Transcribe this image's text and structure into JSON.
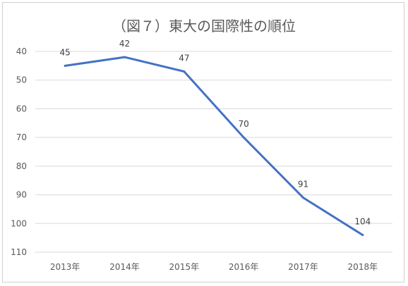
{
  "chart_data": {
    "type": "line",
    "title": "（図７）東大の国際性の順位",
    "categories": [
      "2013年",
      "2014年",
      "2015年",
      "2016年",
      "2017年",
      "2018年"
    ],
    "series": [
      {
        "values": [
          45,
          42,
          47,
          70,
          91,
          104
        ],
        "color": "#4472c4"
      }
    ],
    "y_axis": {
      "reversed": true,
      "ylim": [
        40,
        110
      ],
      "ticks": [
        40,
        50,
        60,
        70,
        80,
        90,
        100,
        110
      ]
    },
    "xlabel": "",
    "ylabel": "",
    "grid": true,
    "legend": "none"
  }
}
